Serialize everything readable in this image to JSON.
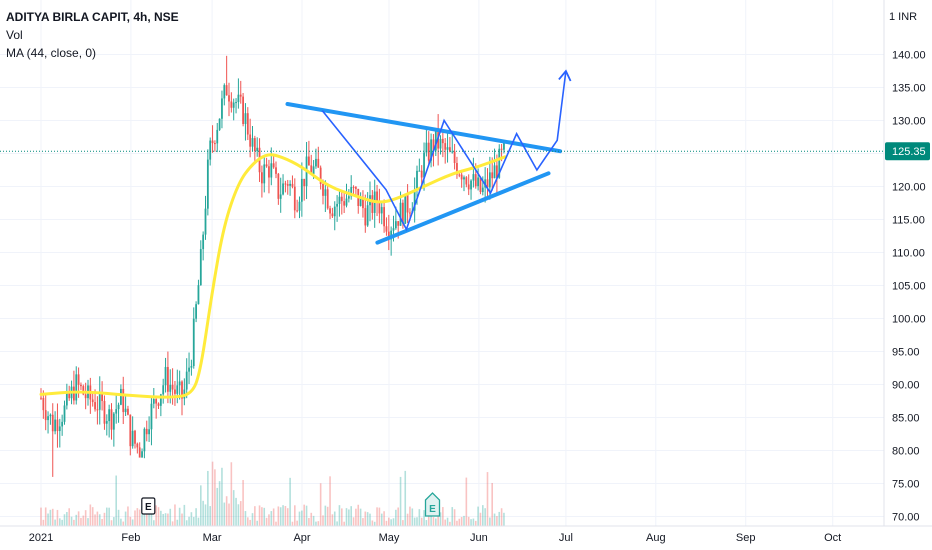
{
  "header": {
    "title": "ADITYA BIRLA CAPIT, 4h, NSE",
    "indicator_vol": "Vol",
    "indicator_ma": "MA (44, close, 0)"
  },
  "currency_label": "INR",
  "chart_data": {
    "type": "candlestick",
    "ylim": [
      70,
      143
    ],
    "y_ticks": [
      "140.00",
      "135.00",
      "130.00",
      "125.00",
      "120.00",
      "115.00",
      "110.00",
      "105.00",
      "100.00",
      "95.00",
      "90.00",
      "85.00",
      "80.00",
      "75.00",
      "70.00"
    ],
    "x_ticks": [
      "2021",
      "Feb",
      "Mar",
      "Apr",
      "May",
      "Jun",
      "Jul",
      "Aug",
      "Sep",
      "Oct"
    ],
    "last_price": "125.35",
    "last_price_value": 125.35,
    "colors": {
      "up": "#26a69a",
      "down": "#ef5350",
      "ma": "#ffeb3b",
      "drawing": "#2962ff",
      "trendline": "#2196f3",
      "price_tag": "#00897b"
    },
    "price_path": [
      [
        "2021-01-01",
        88
      ],
      [
        "2021-01-05",
        84
      ],
      [
        "2021-01-09",
        86
      ],
      [
        "2021-01-13",
        90
      ],
      [
        "2021-01-17",
        88
      ],
      [
        "2021-01-21",
        87
      ],
      [
        "2021-01-25",
        85
      ],
      [
        "2021-01-29",
        88
      ],
      [
        "2021-02-01",
        82
      ],
      [
        "2021-02-04",
        80
      ],
      [
        "2021-02-07",
        85
      ],
      [
        "2021-02-10",
        88
      ],
      [
        "2021-02-13",
        91
      ],
      [
        "2021-02-16",
        89
      ],
      [
        "2021-02-19",
        88
      ],
      [
        "2021-02-22",
        95
      ],
      [
        "2021-02-25",
        108
      ],
      [
        "2021-02-28",
        125
      ],
      [
        "2021-03-03",
        130
      ],
      [
        "2021-03-06",
        135
      ],
      [
        "2021-03-09",
        133
      ],
      [
        "2021-03-12",
        131
      ],
      [
        "2021-03-15",
        126
      ],
      [
        "2021-03-18",
        122
      ],
      [
        "2021-03-21",
        123
      ],
      [
        "2021-03-24",
        119
      ],
      [
        "2021-03-27",
        121
      ],
      [
        "2021-03-30",
        118
      ],
      [
        "2021-04-03",
        123
      ],
      [
        "2021-04-07",
        122
      ],
      [
        "2021-04-11",
        117
      ],
      [
        "2021-04-15",
        118
      ],
      [
        "2021-04-19",
        119
      ],
      [
        "2021-04-23",
        116
      ],
      [
        "2021-04-27",
        118
      ],
      [
        "2021-05-01",
        114
      ],
      [
        "2021-05-05",
        116
      ],
      [
        "2021-05-09",
        118
      ],
      [
        "2021-05-13",
        124
      ],
      [
        "2021-05-17",
        127
      ],
      [
        "2021-05-21",
        125
      ],
      [
        "2021-05-25",
        123
      ],
      [
        "2021-05-29",
        121
      ],
      [
        "2021-06-02",
        119
      ],
      [
        "2021-06-06",
        122
      ],
      [
        "2021-06-10",
        125.35
      ]
    ],
    "ma_line": [
      [
        "2021-01-01",
        88.5
      ],
      [
        "2021-01-15",
        89
      ],
      [
        "2021-02-01",
        88.3
      ],
      [
        "2021-02-15",
        88
      ],
      [
        "2021-02-22",
        88.5
      ],
      [
        "2021-02-25",
        92
      ],
      [
        "2021-03-01",
        104
      ],
      [
        "2021-03-05",
        114
      ],
      [
        "2021-03-10",
        120.5
      ],
      [
        "2021-03-15",
        123.5
      ],
      [
        "2021-03-20",
        125
      ],
      [
        "2021-03-25",
        124.5
      ],
      [
        "2021-04-01",
        123
      ],
      [
        "2021-04-10",
        120
      ],
      [
        "2021-04-20",
        118.5
      ],
      [
        "2021-04-27",
        117.5
      ],
      [
        "2021-05-03",
        118
      ],
      [
        "2021-05-13",
        120
      ],
      [
        "2021-05-23",
        122
      ],
      [
        "2021-06-01",
        123
      ],
      [
        "2021-06-10",
        124.5
      ]
    ],
    "annotation_lines": [
      {
        "name": "upper-trendline",
        "points": [
          [
            "2021-03-27",
            132.5
          ],
          [
            "2021-06-29",
            125.35
          ]
        ]
      },
      {
        "name": "lower-trendline",
        "points": [
          [
            "2021-04-27",
            111.5
          ],
          [
            "2021-06-25",
            122
          ]
        ]
      }
    ],
    "projection_path": [
      [
        "2021-04-08",
        131.5
      ],
      [
        "2021-04-30",
        119.5
      ],
      [
        "2021-05-07",
        113.5
      ],
      [
        "2021-05-20",
        130
      ],
      [
        "2021-06-05",
        119
      ],
      [
        "2021-06-14",
        128
      ],
      [
        "2021-06-21",
        122.5
      ],
      [
        "2021-06-28",
        127
      ],
      [
        "2021-07-01",
        137.5
      ]
    ],
    "event_markers": [
      {
        "date": "2021-02-07",
        "label": "E",
        "style": "outline"
      },
      {
        "date": "2021-05-16",
        "label": "E",
        "style": "teal"
      }
    ]
  }
}
